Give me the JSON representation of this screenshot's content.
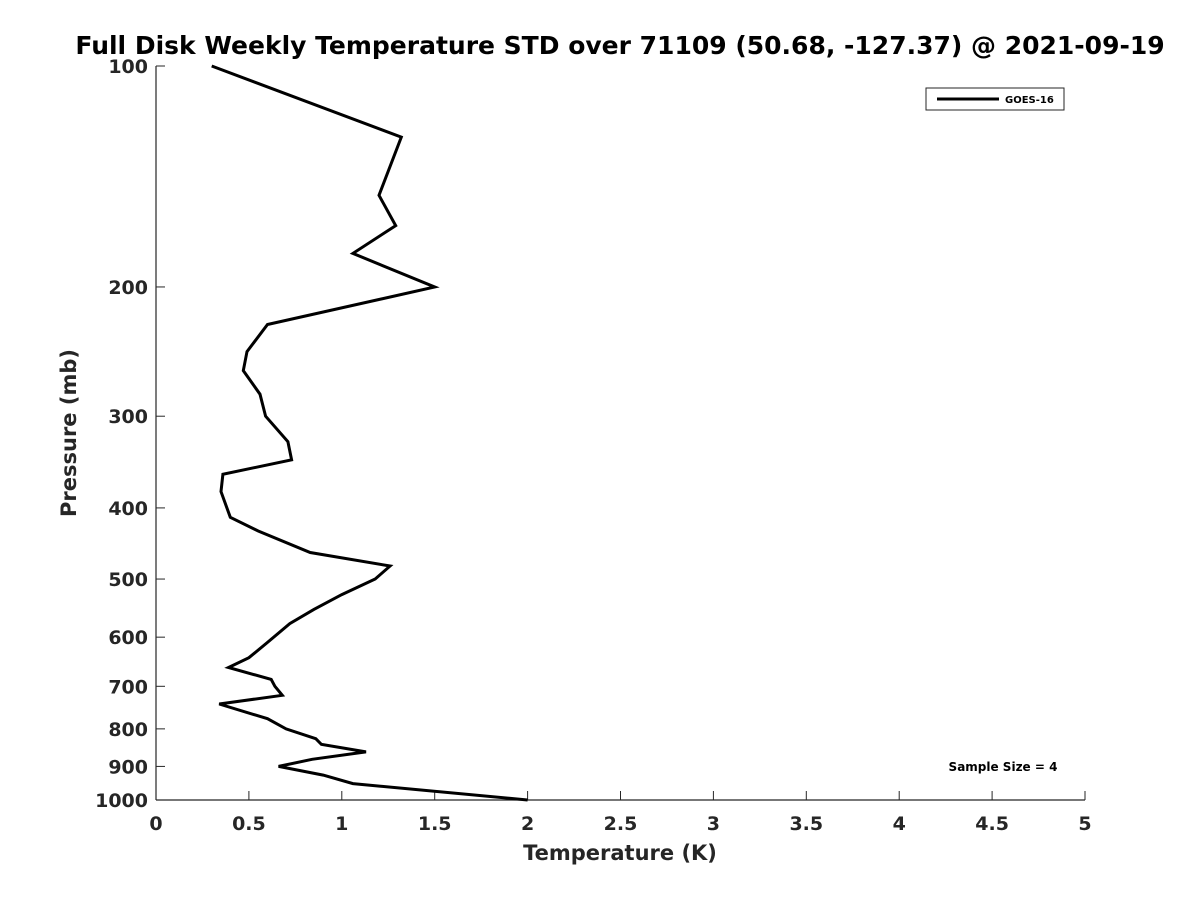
{
  "chart_data": {
    "type": "line",
    "title": "Full Disk Weekly Temperature STD over 71109 (50.68, -127.37) @ 2021-09-19",
    "xlabel": "Temperature (K)",
    "ylabel": "Pressure (mb)",
    "xlim": [
      0,
      5
    ],
    "ylim": [
      100,
      1000
    ],
    "yscale": "log",
    "y_reversed": true,
    "x_ticks": [
      0,
      0.5,
      1,
      1.5,
      2,
      2.5,
      3,
      3.5,
      4,
      4.5,
      5
    ],
    "x_tick_labels": [
      "0",
      "0.5",
      "1",
      "1.5",
      "2",
      "2.5",
      "3",
      "3.5",
      "4",
      "4.5",
      "5"
    ],
    "y_ticks": [
      100,
      200,
      300,
      400,
      500,
      600,
      700,
      800,
      900,
      1000
    ],
    "y_tick_labels": [
      "100",
      "200",
      "300",
      "400",
      "500",
      "600",
      "700",
      "800",
      "900",
      "1000"
    ],
    "grid": false,
    "legend_position": "top-right",
    "annotation": "Sample Size = 4",
    "series": [
      {
        "name": "GOES-16",
        "color": "#000000",
        "points": [
          [
            0.3,
            100
          ],
          [
            1.32,
            125
          ],
          [
            1.2,
            150
          ],
          [
            1.29,
            165
          ],
          [
            1.06,
            180
          ],
          [
            1.5,
            200
          ],
          [
            0.6,
            225
          ],
          [
            0.49,
            245
          ],
          [
            0.47,
            260
          ],
          [
            0.56,
            280
          ],
          [
            0.59,
            300
          ],
          [
            0.71,
            325
          ],
          [
            0.73,
            344
          ],
          [
            0.36,
            360
          ],
          [
            0.35,
            380
          ],
          [
            0.4,
            412
          ],
          [
            0.55,
            430
          ],
          [
            0.83,
            460
          ],
          [
            1.26,
            480
          ],
          [
            1.18,
            500
          ],
          [
            1.0,
            525
          ],
          [
            0.85,
            550
          ],
          [
            0.72,
            575
          ],
          [
            0.6,
            610
          ],
          [
            0.5,
            640
          ],
          [
            0.39,
            660
          ],
          [
            0.62,
            685
          ],
          [
            0.64,
            700
          ],
          [
            0.68,
            720
          ],
          [
            0.34,
            740
          ],
          [
            0.6,
            775
          ],
          [
            0.7,
            800
          ],
          [
            0.86,
            825
          ],
          [
            0.89,
            840
          ],
          [
            1.13,
            860
          ],
          [
            0.84,
            880
          ],
          [
            0.66,
            900
          ],
          [
            0.9,
            925
          ],
          [
            1.06,
            950
          ],
          [
            2.0,
            1000
          ]
        ]
      }
    ]
  }
}
